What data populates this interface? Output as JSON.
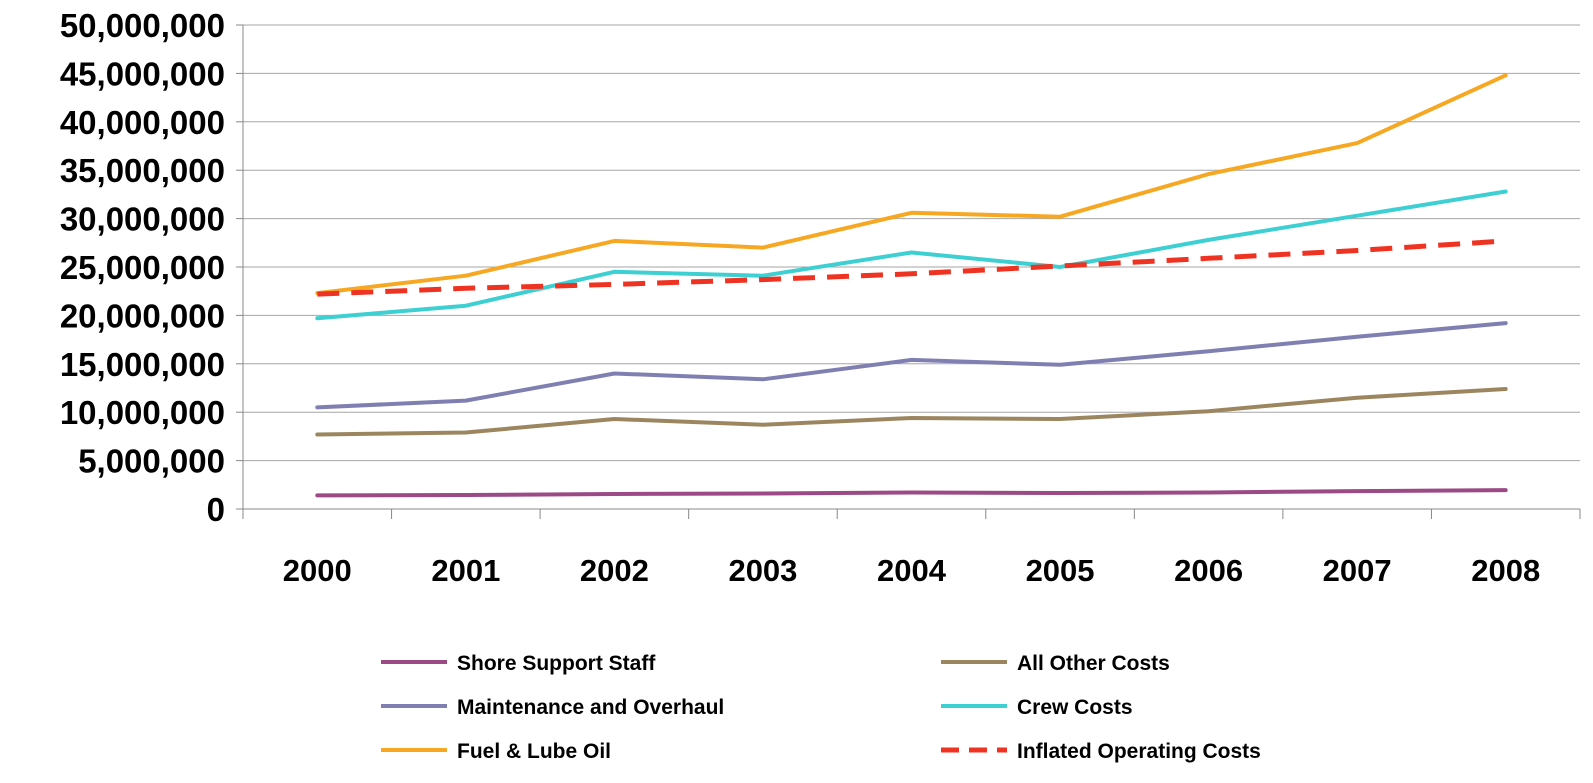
{
  "chart_data": {
    "type": "line",
    "title": "",
    "xlabel": "",
    "ylabel": "",
    "categories": [
      "2000",
      "2001",
      "2002",
      "2003",
      "2004",
      "2005",
      "2006",
      "2007",
      "2008"
    ],
    "ylim": [
      0,
      50000000
    ],
    "y_tick_values": [
      0,
      5000000,
      10000000,
      15000000,
      20000000,
      25000000,
      30000000,
      35000000,
      40000000,
      45000000,
      50000000
    ],
    "y_tick_labels": [
      "0",
      "5,000,000",
      "10,000,000",
      "15,000,000",
      "20,000,000",
      "25,000,000",
      "30,000,000",
      "35,000,000",
      "40,000,000",
      "45,000,000",
      "50,000,000"
    ],
    "grid": "horizontal",
    "legend_position": "bottom",
    "series": [
      {
        "name": "Shore Support Staff",
        "color": "#9B4A86",
        "dashed": false,
        "values": [
          1400000,
          1450000,
          1550000,
          1600000,
          1700000,
          1650000,
          1700000,
          1850000,
          1950000
        ]
      },
      {
        "name": "All Other Costs",
        "color": "#9C8660",
        "dashed": false,
        "values": [
          7700000,
          7900000,
          9300000,
          8700000,
          9400000,
          9300000,
          10100000,
          11500000,
          12400000
        ]
      },
      {
        "name": "Maintenance and Overhaul",
        "color": "#7F7FB2",
        "dashed": false,
        "values": [
          10500000,
          11200000,
          14000000,
          13400000,
          15400000,
          14900000,
          16300000,
          17800000,
          19200000
        ]
      },
      {
        "name": "Crew Costs",
        "color": "#3ECFD2",
        "dashed": false,
        "values": [
          19700000,
          21000000,
          24500000,
          24100000,
          26500000,
          25000000,
          27800000,
          30300000,
          32800000
        ]
      },
      {
        "name": "Fuel & Lube Oil",
        "color": "#F7A823",
        "dashed": false,
        "values": [
          22300000,
          24100000,
          27700000,
          27000000,
          30600000,
          30200000,
          34600000,
          37800000,
          44800000
        ]
      },
      {
        "name": "Inflated Operating Costs",
        "color": "#EE3322",
        "dashed": true,
        "values": [
          22200000,
          22800000,
          23200000,
          23700000,
          24300000,
          25100000,
          25900000,
          26700000,
          27700000
        ]
      }
    ],
    "legend_order": [
      0,
      1,
      2,
      3,
      4,
      5
    ]
  }
}
